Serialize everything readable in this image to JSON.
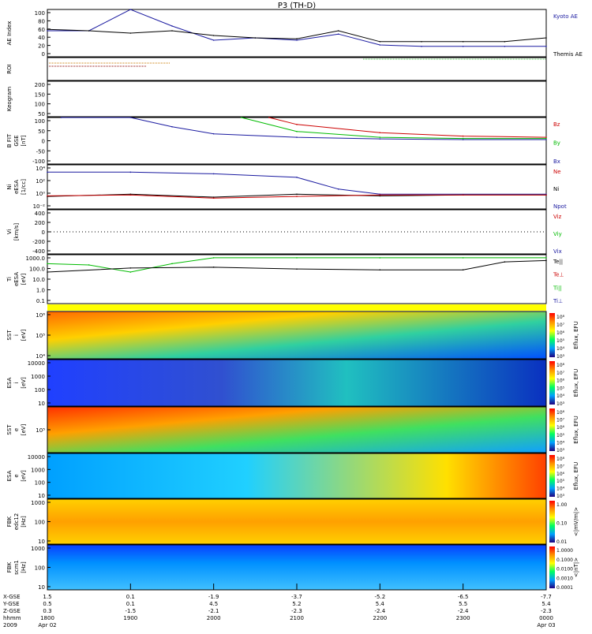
{
  "title": "P3 (TH-D)",
  "panels": [
    {
      "id": "ae",
      "ylabel": [
        "AE Index"
      ],
      "ticks": [
        "100",
        "80",
        "60",
        "40",
        "20",
        "0"
      ],
      "legend": [
        {
          "text": "Kyoto AE",
          "color": "#1a1aa0"
        },
        {
          "text": "Themis AE",
          "color": "#000000"
        }
      ]
    },
    {
      "id": "roi",
      "ylabel": [
        "ROI"
      ],
      "ticks": [],
      "legend": []
    },
    {
      "id": "keogram",
      "ylabel": [
        "Keogram"
      ],
      "ticks": [
        "200",
        "150",
        "100",
        "50"
      ],
      "legend": []
    },
    {
      "id": "bfit",
      "ylabel": [
        "B FIT",
        "GSE",
        "[nT]"
      ],
      "ticks": [
        "100",
        "50",
        "0",
        "-50",
        "-100"
      ],
      "legend": [
        {
          "text": "Bz",
          "color": "#cc0000"
        },
        {
          "text": "By",
          "color": "#00bb00"
        },
        {
          "text": "Bx",
          "color": "#1a1aa0"
        }
      ]
    },
    {
      "id": "ni",
      "ylabel": [
        "Ni",
        "eESA",
        "[1/cc]"
      ],
      "ticks": [
        "10⁴",
        "10²",
        "10⁰",
        "10⁻²"
      ],
      "legend": [
        {
          "text": "Ne",
          "color": "#cc0000"
        },
        {
          "text": "Ni",
          "color": "#000000"
        },
        {
          "text": "Npot",
          "color": "#1a1aa0"
        }
      ]
    },
    {
      "id": "vi",
      "ylabel": [
        "Vi",
        "[km/s]"
      ],
      "ticks": [
        "400",
        "200",
        "0",
        "-200",
        "-400"
      ],
      "legend": [
        {
          "text": "Viz",
          "color": "#cc0000"
        },
        {
          "text": "Viy",
          "color": "#00bb00"
        },
        {
          "text": "Vix",
          "color": "#1a1aa0"
        }
      ]
    },
    {
      "id": "ti",
      "ylabel": [
        "Ti",
        "eESA",
        "[eV]"
      ],
      "ticks": [
        "1000.0",
        "100.0",
        "10.0",
        "1.0",
        "0.1"
      ],
      "legend": [
        {
          "text": "Te||",
          "color": "#000000"
        },
        {
          "text": "Te⊥",
          "color": "#cc0000"
        },
        {
          "text": "Ti||",
          "color": "#00bb00"
        },
        {
          "text": "Ti⊥",
          "color": "#1a1aa0"
        }
      ]
    },
    {
      "id": "sst_i",
      "ylabel": [
        "SST",
        "i",
        "[eV]"
      ],
      "ticks": [
        "10⁶",
        "10⁵",
        "10⁴"
      ],
      "cbar": [
        "10⁸",
        "10⁷",
        "10⁶",
        "10⁵",
        "10⁴",
        "10³"
      ],
      "cbar_label": "Eflux, EFU"
    },
    {
      "id": "esa_i",
      "ylabel": [
        "ESA",
        "i",
        "[eV]"
      ],
      "ticks": [
        "10000",
        "1000",
        "100",
        "10"
      ],
      "cbar": [
        "10⁸",
        "10⁷",
        "10⁶",
        "10⁵",
        "10⁴",
        "10³"
      ],
      "cbar_label": "Eflux, EFU"
    },
    {
      "id": "sst_e",
      "ylabel": [
        "SST",
        "e",
        "[eV]"
      ],
      "ticks": [
        "10⁵"
      ],
      "cbar": [
        "10⁸",
        "10⁷",
        "10⁶",
        "10⁵",
        "10⁴",
        "10³"
      ],
      "cbar_label": "Eflux, EFU"
    },
    {
      "id": "esa_e",
      "ylabel": [
        "ESA",
        "e",
        "[eV]"
      ],
      "ticks": [
        "10000",
        "1000",
        "100",
        "10"
      ],
      "cbar": [
        "10⁸",
        "10⁷",
        "10⁶",
        "10⁵",
        "10⁴",
        "10³"
      ],
      "cbar_label": "Eflux, EFU"
    },
    {
      "id": "fbk_b",
      "ylabel": [
        "FBK",
        "edc12",
        "[Hz]"
      ],
      "ticks": [
        "1000",
        "100",
        "10"
      ],
      "cbar": [
        "1.00",
        "0.10",
        "0.01"
      ],
      "cbar_label": "<|mV/m|>"
    },
    {
      "id": "fbk_e",
      "ylabel": [
        "FBK",
        "scm1",
        "[Hz]"
      ],
      "ticks": [
        "1000",
        "100",
        "10"
      ],
      "cbar": [
        "1.0000",
        "0.1000",
        "0.0100",
        "0.0010",
        "0.0001"
      ],
      "cbar_label": "<|nT|>"
    }
  ],
  "footer": {
    "row_labels": [
      "X-GSE",
      "Y-GSE",
      "Z-GSE",
      "hhmm",
      "2009"
    ],
    "columns": [
      {
        "rows": [
          "1.5",
          "0.5",
          "0.3",
          "1800",
          "Apr 02"
        ]
      },
      {
        "rows": [
          "0.1",
          "0.1",
          "-1.5",
          "1900",
          ""
        ]
      },
      {
        "rows": [
          "-1.9",
          "4.5",
          "-2.1",
          "2000",
          ""
        ]
      },
      {
        "rows": [
          "-3.7",
          "5.2",
          "-2.3",
          "2100",
          ""
        ]
      },
      {
        "rows": [
          "-5.2",
          "5.4",
          "-2.4",
          "2200",
          ""
        ]
      },
      {
        "rows": [
          "-6.5",
          "5.5",
          "-2.4",
          "2300",
          ""
        ]
      },
      {
        "rows": [
          "-7.7",
          "5.4",
          "-2.3",
          "0000",
          "Apr 03"
        ]
      }
    ]
  },
  "chart_data": {
    "type": "line",
    "title": "P3 (TH-D)",
    "x": {
      "unit": "hhmm",
      "ticks": [
        "1800",
        "1900",
        "2000",
        "2100",
        "2200",
        "2300",
        "0000"
      ],
      "start": "2009 Apr 02 1800",
      "end": "2009 Apr 03 0000"
    },
    "ae_index": {
      "ylim": [
        0,
        100
      ],
      "series": [
        {
          "name": "Kyoto AE",
          "color": "#1a1aa0",
          "x": [
            1800,
            1830,
            1900,
            1930,
            2000,
            2030,
            2100,
            2130,
            2200,
            2230,
            2300,
            2330,
            2400
          ],
          "y": [
            55,
            55,
            102,
            65,
            35,
            40,
            35,
            48,
            25,
            22,
            22,
            22,
            22
          ]
        },
        {
          "name": "Themis AE",
          "color": "#000000",
          "x": [
            1800,
            1830,
            1900,
            1930,
            2000,
            2030,
            2100,
            2130,
            2200,
            2230,
            2300,
            2330,
            2400
          ],
          "y": [
            58,
            55,
            50,
            55,
            45,
            40,
            38,
            55,
            32,
            32,
            32,
            32,
            40
          ]
        }
      ]
    },
    "b_fit_gse": {
      "ylabel": "B FIT GSE [nT]",
      "ylim": [
        -100,
        100
      ],
      "series": [
        {
          "name": "Bz",
          "color": "#cc0000",
          "x": [
            2040,
            2100,
            2200,
            2300,
            2400
          ],
          "y": [
            100,
            70,
            35,
            20,
            15
          ]
        },
        {
          "name": "By",
          "color": "#00bb00",
          "x": [
            2020,
            2100,
            2200,
            2300,
            2400
          ],
          "y": [
            100,
            40,
            15,
            10,
            10
          ]
        },
        {
          "name": "Bx",
          "color": "#1a1aa0",
          "x": [
            1810,
            1900,
            1930,
            2000,
            2100,
            2200,
            2300,
            2400
          ],
          "y": [
            100,
            100,
            60,
            30,
            15,
            8,
            5,
            5
          ]
        }
      ]
    },
    "density": {
      "ylabel": "Ni eESA [1/cc]",
      "scale": "log",
      "ylim": [
        0.01,
        10000
      ],
      "series": [
        {
          "name": "Npot",
          "color": "#1a1aa0",
          "x": [
            1800,
            1900,
            2000,
            2100,
            2130,
            2200,
            2400
          ],
          "y": [
            1000,
            1000,
            600,
            200,
            5,
            1,
            1
          ]
        },
        {
          "name": "Ni",
          "color": "#000000",
          "x": [
            1800,
            1900,
            2000,
            2100,
            2200,
            2300,
            2400
          ],
          "y": [
            0.5,
            1,
            0.4,
            1,
            0.6,
            0.8,
            0.8
          ]
        },
        {
          "name": "Ne",
          "color": "#cc0000",
          "x": [
            1800,
            1900,
            2000,
            2100,
            2200,
            2300,
            2400
          ],
          "y": [
            0.6,
            0.8,
            0.3,
            0.5,
            0.8,
            0.8,
            0.8
          ]
        }
      ]
    },
    "velocity": {
      "ylabel": "Vi [km/s]",
      "ylim": [
        -400,
        400
      ],
      "series": []
    },
    "temperature": {
      "ylabel": "Ti eESA [eV]",
      "scale": "log",
      "ylim": [
        0.05,
        3000
      ],
      "series": [
        {
          "name": "Ti||",
          "color": "#00bb00",
          "x": [
            1800,
            1830,
            1900,
            1930,
            2000,
            2100,
            2200,
            2300,
            2400
          ],
          "y": [
            400,
            300,
            60,
            400,
            1500,
            1500,
            1500,
            1500,
            1500
          ]
        },
        {
          "name": "Te||",
          "color": "#000000",
          "x": [
            1800,
            1900,
            2000,
            2100,
            2200,
            2300,
            2330,
            2400
          ],
          "y": [
            60,
            150,
            180,
            120,
            100,
            100,
            600,
            800
          ]
        }
      ]
    }
  }
}
